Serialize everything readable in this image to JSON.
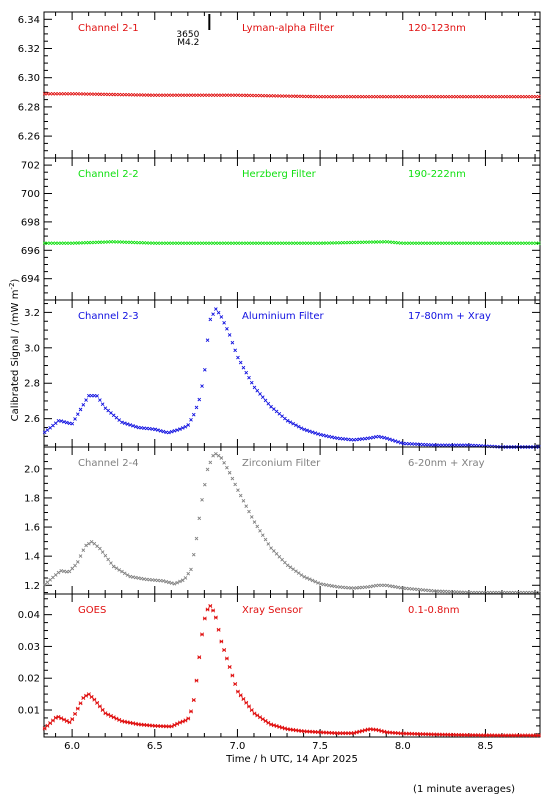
{
  "figure": {
    "ylabel_main": "Calibrated Signal / (mW m",
    "ylabel_sup": "-2",
    "ylabel_end": ")",
    "xlabel": "Time / h UTC, 14 Apr 2025",
    "footnote": "(1 minute averages)",
    "x_ticks": [
      "6.0",
      "6.5",
      "7.0",
      "7.5",
      "8.0",
      "8.5"
    ],
    "flare_marker": {
      "time": 6.83,
      "region": "3650",
      "class": "M4.2"
    }
  },
  "chart_data": [
    {
      "type": "scatter",
      "channel": "Channel 2-1",
      "filter": "Lyman-alpha Filter",
      "band": "120-123nm",
      "color": "#e01010",
      "marker": "x",
      "ylim": [
        6.245,
        6.345
      ],
      "yticks": [
        6.26,
        6.28,
        6.3,
        6.32,
        6.34
      ],
      "ytick_labels": [
        "6.26",
        "6.28",
        "6.30",
        "6.32",
        "6.34"
      ],
      "x": [
        5.83,
        6.0,
        6.5,
        7.0,
        7.5,
        8.0,
        8.5,
        8.83
      ],
      "y": [
        6.289,
        6.289,
        6.288,
        6.288,
        6.287,
        6.287,
        6.287,
        6.287
      ]
    },
    {
      "type": "scatter",
      "channel": "Channel 2-2",
      "filter": "Herzberg Filter",
      "band": "190-222nm",
      "color": "#10e010",
      "marker": "x",
      "ylim": [
        692.5,
        702.5
      ],
      "yticks": [
        694,
        696,
        698,
        700,
        702
      ],
      "ytick_labels": [
        "694",
        "696",
        "698",
        "700",
        "702"
      ],
      "x": [
        5.83,
        6.0,
        6.25,
        6.5,
        7.0,
        7.5,
        7.9,
        8.0,
        8.5,
        8.83
      ],
      "y": [
        696.5,
        696.5,
        696.6,
        696.5,
        696.5,
        696.5,
        696.6,
        696.5,
        696.5,
        696.5
      ]
    },
    {
      "type": "scatter",
      "channel": "Channel 2-3",
      "filter": "Aluminium Filter",
      "band": "17-80nm + Xray",
      "color": "#1010e0",
      "marker": "x",
      "ylim": [
        2.44,
        3.27
      ],
      "yticks": [
        2.6,
        2.8,
        3.0,
        3.2
      ],
      "ytick_labels": [
        "2.6",
        "2.8",
        "3.0",
        "3.2"
      ],
      "x": [
        5.83,
        5.87,
        5.92,
        5.96,
        6.0,
        6.05,
        6.1,
        6.15,
        6.2,
        6.3,
        6.4,
        6.5,
        6.58,
        6.65,
        6.7,
        6.74,
        6.77,
        6.8,
        6.83,
        6.87,
        6.9,
        6.95,
        7.0,
        7.1,
        7.2,
        7.3,
        7.4,
        7.5,
        7.6,
        7.7,
        7.8,
        7.85,
        7.9,
        8.0,
        8.2,
        8.4,
        8.6,
        8.83
      ],
      "y": [
        2.52,
        2.55,
        2.59,
        2.58,
        2.57,
        2.65,
        2.73,
        2.73,
        2.66,
        2.58,
        2.55,
        2.54,
        2.52,
        2.54,
        2.56,
        2.63,
        2.71,
        2.85,
        3.15,
        3.22,
        3.18,
        3.08,
        2.95,
        2.78,
        2.67,
        2.59,
        2.54,
        2.51,
        2.49,
        2.48,
        2.49,
        2.5,
        2.49,
        2.46,
        2.45,
        2.45,
        2.44,
        2.44
      ]
    },
    {
      "type": "scatter",
      "channel": "Channel 2-4",
      "filter": "Zirconium Filter",
      "band": "6-20nm + Xray",
      "color": "#808080",
      "marker": "x",
      "ylim": [
        1.14,
        2.15
      ],
      "yticks": [
        1.2,
        1.4,
        1.6,
        1.8,
        2.0
      ],
      "ytick_labels": [
        "1.2",
        "1.4",
        "1.6",
        "1.8",
        "2.0"
      ],
      "x": [
        5.83,
        5.88,
        5.93,
        5.98,
        6.03,
        6.08,
        6.12,
        6.17,
        6.25,
        6.35,
        6.45,
        6.55,
        6.62,
        6.68,
        6.72,
        6.75,
        6.78,
        6.82,
        6.86,
        6.9,
        6.95,
        7.0,
        7.1,
        7.2,
        7.3,
        7.4,
        7.5,
        7.6,
        7.7,
        7.8,
        7.85,
        7.9,
        8.0,
        8.2,
        8.4,
        8.6,
        8.83
      ],
      "y": [
        1.2,
        1.25,
        1.3,
        1.29,
        1.35,
        1.47,
        1.5,
        1.45,
        1.33,
        1.26,
        1.24,
        1.23,
        1.21,
        1.24,
        1.31,
        1.5,
        1.75,
        2.0,
        2.11,
        2.08,
        1.98,
        1.86,
        1.64,
        1.46,
        1.34,
        1.26,
        1.21,
        1.19,
        1.18,
        1.19,
        1.2,
        1.2,
        1.18,
        1.16,
        1.15,
        1.15,
        1.15
      ]
    },
    {
      "type": "scatter",
      "channel": "GOES",
      "filter": "Xray Sensor",
      "band": "0.1-0.8nm",
      "color": "#e01010",
      "marker": "*",
      "ylim": [
        0.0015,
        0.0465
      ],
      "yticks": [
        0.01,
        0.02,
        0.03,
        0.04
      ],
      "ytick_labels": [
        "0.01",
        "0.02",
        "0.03",
        "0.04"
      ],
      "x": [
        5.83,
        5.87,
        5.91,
        5.95,
        5.99,
        6.03,
        6.07,
        6.1,
        6.14,
        6.2,
        6.3,
        6.4,
        6.5,
        6.6,
        6.65,
        6.7,
        6.73,
        6.76,
        6.78,
        6.81,
        6.84,
        6.87,
        6.9,
        6.95,
        7.0,
        7.1,
        7.2,
        7.3,
        7.4,
        7.5,
        7.6,
        7.7,
        7.8,
        7.85,
        7.9,
        8.0,
        8.2,
        8.4,
        8.6,
        8.83
      ],
      "y": [
        0.004,
        0.006,
        0.008,
        0.007,
        0.006,
        0.01,
        0.014,
        0.015,
        0.013,
        0.009,
        0.0065,
        0.0055,
        0.005,
        0.0048,
        0.006,
        0.007,
        0.011,
        0.022,
        0.032,
        0.041,
        0.043,
        0.039,
        0.032,
        0.024,
        0.016,
        0.009,
        0.0055,
        0.004,
        0.0033,
        0.003,
        0.0027,
        0.0027,
        0.004,
        0.0037,
        0.003,
        0.0026,
        0.0023,
        0.0021,
        0.002,
        0.002
      ]
    }
  ]
}
